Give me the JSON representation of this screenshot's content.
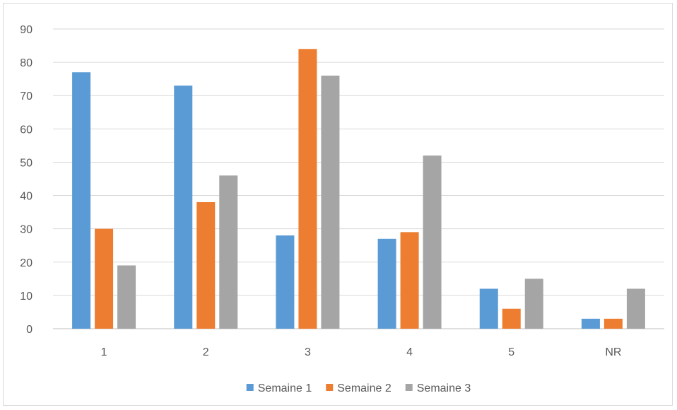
{
  "chart_data": {
    "type": "bar",
    "title": "",
    "xlabel": "",
    "ylabel": "",
    "categories": [
      "1",
      "2",
      "3",
      "4",
      "5",
      "NR"
    ],
    "ylim": [
      0,
      90
    ],
    "yticks": [
      0,
      10,
      20,
      30,
      40,
      50,
      60,
      70,
      80,
      90
    ],
    "grid": true,
    "legend_position": "bottom",
    "series": [
      {
        "name": "Semaine 1",
        "color": "#5b9bd5",
        "values": [
          77,
          73,
          28,
          27,
          12,
          3
        ]
      },
      {
        "name": "Semaine 2",
        "color": "#ed7d31",
        "values": [
          30,
          38,
          84,
          29,
          6,
          3
        ]
      },
      {
        "name": "Semaine 3",
        "color": "#a5a5a5",
        "values": [
          19,
          46,
          76,
          52,
          15,
          12
        ]
      }
    ]
  }
}
